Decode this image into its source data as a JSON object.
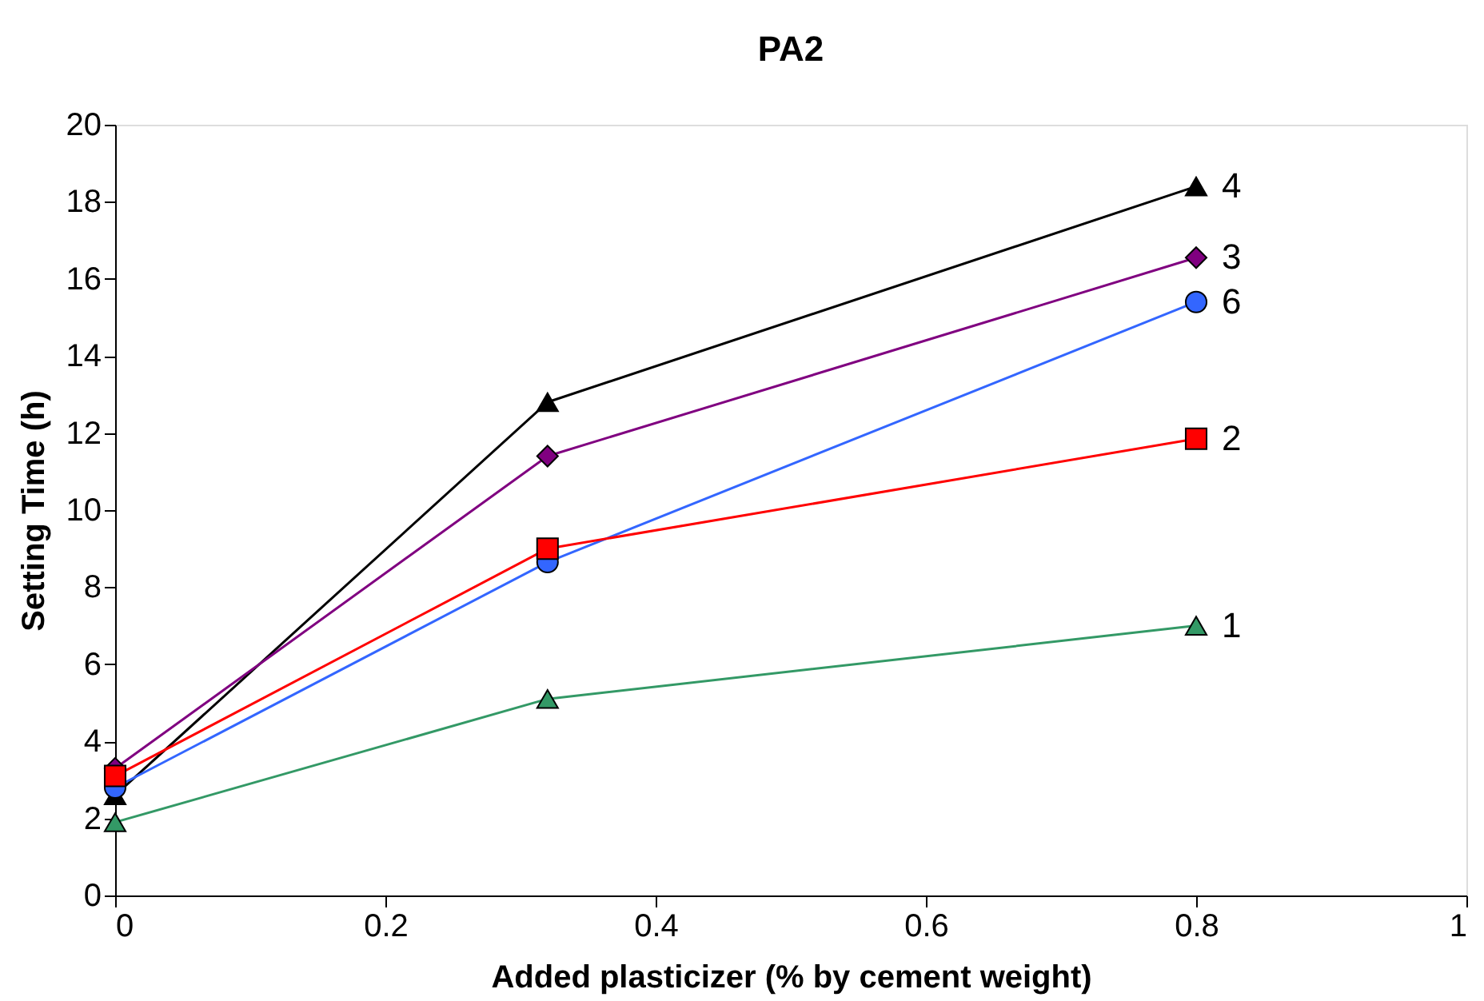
{
  "chart_data": {
    "type": "line",
    "title": "PA2",
    "xlabel": "Added plasticizer (% by cement weight)",
    "ylabel": "Setting Time (h)",
    "x": [
      0,
      0.32,
      0.8
    ],
    "series": [
      {
        "name": "4",
        "color": "#000000",
        "marker": "triangle",
        "values": [
          2.6,
          12.8,
          18.4
        ]
      },
      {
        "name": "3",
        "color": "#800080",
        "marker": "diamond",
        "values": [
          3.3,
          11.4,
          16.55
        ]
      },
      {
        "name": "6",
        "color": "#3366ff",
        "marker": "circle",
        "values": [
          2.8,
          8.65,
          15.4
        ]
      },
      {
        "name": "2",
        "color": "#ff0000",
        "marker": "square",
        "values": [
          3.1,
          9.0,
          11.85
        ]
      },
      {
        "name": "1",
        "color": "#339966",
        "marker": "triangle",
        "values": [
          1.9,
          5.1,
          7.0
        ]
      }
    ],
    "xlim": [
      0,
      1
    ],
    "xticks": [
      0,
      0.2,
      0.4,
      0.6,
      0.8,
      1
    ],
    "ylim": [
      0,
      20
    ],
    "yticks": [
      0,
      2,
      4,
      6,
      8,
      10,
      12,
      14,
      16,
      18,
      20
    ],
    "grid": false,
    "line_style": "solid"
  }
}
